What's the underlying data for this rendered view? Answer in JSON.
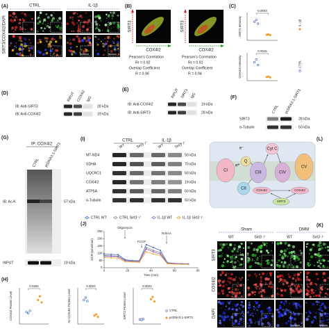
{
  "panels": {
    "A": {
      "label": "(A)",
      "columns": [
        "CTRL",
        "IL-1β"
      ],
      "row_label": "SIRT3/COX4I2/DAPI",
      "scale_bars": [
        "20 μm",
        "5 μm"
      ]
    },
    "B": {
      "label": "(B)",
      "y_axis": [
        "SIRT3",
        "SIRT3"
      ],
      "x_axis": [
        "COX4I2",
        "COX4I2"
      ],
      "stats": [
        {
          "pearson_title": "Pearson's Correlation",
          "pearson": "Rr = 0.92",
          "overlap_title": "Overlap Coefficient",
          "overlap": "R = 0.96"
        },
        {
          "pearson_title": "Pearson's Correlation",
          "pearson": "Rr = 0.91",
          "overlap_title": "Overlap Coefficient",
          "overlap": "R = 0.94"
        }
      ]
    },
    "C": {
      "label": "(C)"
    },
    "D": {
      "label": "(D)",
      "lanes": [
        "INPUT",
        "COX4I2",
        "IgG"
      ],
      "rows": [
        {
          "name": "IB: Anti-SIRT3",
          "size": "28 kDa"
        },
        {
          "name": "IB: Anti-COX4I2",
          "size": "19 kDa"
        }
      ]
    },
    "E": {
      "label": "(E)",
      "lanes": [
        "INPUT",
        "SIRT3",
        "IgG"
      ],
      "rows": [
        {
          "name": "IB: Anti-COX4I2",
          "size": "19 kDa"
        },
        {
          "name": "IB: Anti-SIRT3",
          "size": "28 kDa"
        }
      ]
    },
    "F": {
      "label": "(F)",
      "lanes": [
        "CTRL",
        "pcDNA3.1-SIRT3"
      ],
      "rows": [
        {
          "name": "SIRT3",
          "size": "28 kDa"
        },
        {
          "name": "α-Tubulin",
          "size": "50 kDa"
        }
      ]
    },
    "G": {
      "label": "(G)",
      "ip": "IP: COX4I2",
      "lanes": [
        "CTRL",
        "pcDNA3.1-SIRT3"
      ],
      "rows": [
        {
          "name": "IB: Ac-K",
          "size": "57 kDa"
        },
        {
          "name": "INPUT",
          "size": "19 kDa"
        }
      ]
    },
    "I": {
      "label": "(I)",
      "groups": [
        "CTRL",
        "IL-1β"
      ],
      "lanes": [
        "WT",
        "Sirt3⁻/⁻",
        "WT",
        "Sirt3⁻/⁻"
      ],
      "rows": [
        {
          "name": "MT-ND4",
          "size": "50 kDa"
        },
        {
          "name": "SDHA",
          "size": "70 kDa"
        },
        {
          "name": "UQCRC1",
          "size": "50 kDa"
        },
        {
          "name": "COX4I2",
          "size": "19 kDa"
        },
        {
          "name": "ATP5A",
          "size": "50 kDa"
        },
        {
          "name": "α-Tubulin",
          "size": "50 kDa"
        }
      ]
    },
    "L": {
      "label": "(L)",
      "nodes": [
        "CI",
        "Q",
        "Cyt C",
        "CIII",
        "CIV",
        "CV",
        "CII",
        "COX4I2",
        "COX4I2",
        "SIRT3"
      ],
      "electrons": [
        "e⁻",
        "e⁻"
      ]
    },
    "J": {
      "label": "(J)"
    },
    "K": {
      "label": "(K)",
      "groups": [
        "Sham",
        "DMM"
      ],
      "lanes": [
        "WT",
        "Sirt3⁻/⁻",
        "WT",
        "Sirt3⁻/⁻"
      ],
      "rows": [
        "SIRT3",
        "COX4I2",
        "DAPI"
      ],
      "scale_bars": [
        "100 μm",
        "50 μm"
      ]
    },
    "H": {
      "label": "(H)"
    }
  },
  "chart_data": [
    {
      "type": "line",
      "xlabel": "Time (min)",
      "ylabel": "OCR (pmol/min)",
      "annotations": [
        "Oligomycin",
        "FCCP",
        "Rot/AA"
      ],
      "x": [
        0,
        6,
        12,
        18,
        24,
        30,
        36,
        42,
        48,
        54,
        60,
        66,
        72
      ],
      "xlim": [
        0,
        80
      ],
      "xticks": [
        0,
        20,
        40,
        60,
        80
      ],
      "ylim": [
        0,
        250
      ],
      "yticks": [
        0,
        50,
        100,
        150,
        200,
        250
      ],
      "series": [
        {
          "name": "CTRL WT",
          "color": "#3b5fc0",
          "values": [
            95,
            92,
            90,
            55,
            50,
            48,
            160,
            140,
            120,
            35,
            30,
            28,
            27
          ]
        },
        {
          "name": "CTRL Sirt3⁻/⁻",
          "color": "#8a8a8a",
          "values": [
            85,
            82,
            80,
            50,
            46,
            44,
            140,
            120,
            105,
            32,
            28,
            26,
            25
          ]
        },
        {
          "name": "IL-1β WT",
          "color": "#8b5fbf",
          "values": [
            80,
            78,
            76,
            48,
            44,
            42,
            130,
            110,
            95,
            30,
            27,
            25,
            24
          ]
        },
        {
          "name": "IL-1β Sirt3⁻/⁻",
          "color": "#f0a030",
          "values": [
            70,
            68,
            66,
            42,
            40,
            38,
            110,
            95,
            85,
            28,
            25,
            24,
            23
          ]
        }
      ]
    },
    {
      "type": "strip",
      "ylabel": "SIRT3 Intensity",
      "pvalue": "0.0003",
      "ylim": [
        0,
        1.5
      ],
      "series": [
        {
          "name": "CTRL",
          "color": "#3b5fc0",
          "values": [
            1.0,
            1.1,
            0.9
          ]
        },
        {
          "name": "IL-1β",
          "color": "#f0a030",
          "values": [
            0.3,
            0.32,
            0.28
          ]
        }
      ]
    },
    {
      "type": "strip",
      "ylabel": "COX4I2 Intensity",
      "pvalue": "0.0015",
      "ylim": [
        0,
        1.5
      ],
      "series": [
        {
          "color": "#3b5fc0",
          "values": [
            1.0,
            1.15,
            0.85
          ]
        },
        {
          "color": "#f0a030",
          "values": [
            0.2,
            0.22,
            0.18
          ]
        }
      ]
    },
    {
      "type": "strip",
      "ylabel": "COX4I2 Protein Level",
      "pvalue": "0.0284",
      "ylim": [
        0,
        3
      ],
      "series": [
        {
          "color": "#3b5fc0",
          "values": [
            1.0,
            0.9,
            1.1
          ]
        },
        {
          "color": "#f0a030",
          "values": [
            2.0,
            2.3,
            1.8
          ]
        }
      ]
    },
    {
      "type": "strip",
      "ylabel": "Ac-COX4I2 Protein Level",
      "pvalue": "0.0002",
      "ylim": [
        0,
        1.5
      ],
      "series": [
        {
          "color": "#3b5fc0",
          "values": [
            1.0,
            1.1,
            0.95
          ]
        },
        {
          "color": "#f0a030",
          "values": [
            0.35,
            0.4,
            0.3
          ]
        }
      ]
    },
    {
      "type": "strip",
      "ylabel": "SIRT3 Protein Level",
      "pvalue": "0.0001",
      "ylim": [
        0,
        8
      ],
      "series": [
        {
          "name": "CTRL",
          "color": "#3b5fc0",
          "values": [
            1.0,
            0.9,
            1.1
          ]
        },
        {
          "name": "pcDNA3.1-SIRT3",
          "color": "#f0a030",
          "values": [
            5.5,
            6.0,
            5.0
          ]
        }
      ]
    }
  ]
}
